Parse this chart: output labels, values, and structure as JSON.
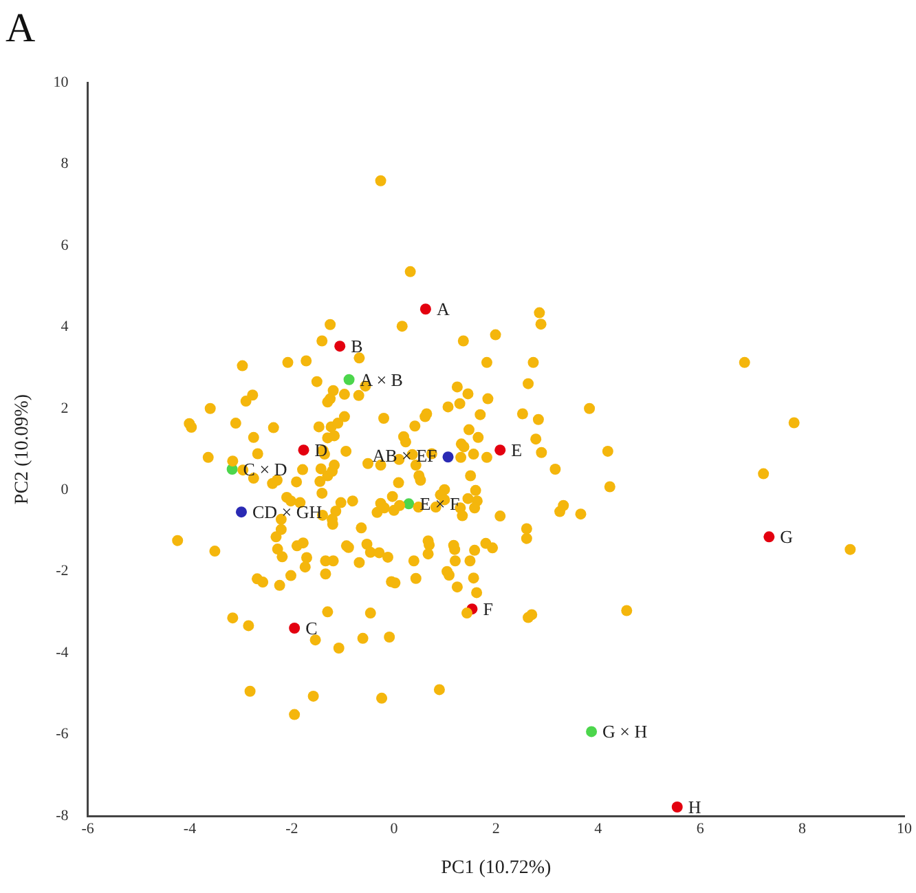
{
  "chart_data": {
    "type": "scatter",
    "title": "A",
    "xlabel": "PC1 (10.72%)",
    "ylabel": "PC2 (10.09%)",
    "xlim": [
      -6,
      10
    ],
    "ylim": [
      -8,
      10
    ],
    "xticks": [
      -6,
      -4,
      -2,
      0,
      2,
      4,
      6,
      8,
      10
    ],
    "yticks": [
      -8,
      -6,
      -4,
      -2,
      0,
      2,
      4,
      6,
      8,
      10
    ],
    "grid": false,
    "legend": false,
    "marker": "circle",
    "series": [
      {
        "color": "#f4b60c",
        "x": [
          -0.26,
          0.32,
          0.16,
          -1.25,
          -1.41,
          -0.68,
          -2.97,
          -2.08,
          -1.72,
          -1.51,
          -0.56,
          -1.19,
          -0.97,
          -0.69,
          -1.25,
          -1.3,
          -2.77,
          -2.9,
          -3.6,
          -4.01,
          -3.97,
          -3.1,
          -2.36,
          -2.75,
          -1.47,
          -1.23,
          -1.1,
          -0.97,
          -0.2,
          -1.3,
          -1.17,
          0.41,
          0.64,
          0.61,
          0.19,
          0.23,
          -2.67,
          -3.64,
          -3.16,
          -1.39,
          -1.36,
          -0.94,
          -0.51,
          -0.26,
          0.1,
          0.36,
          0.74,
          -2.96,
          -2.75,
          -1.79,
          -1.43,
          -1.3,
          -1.21,
          -1.17,
          -1.45,
          -1.91,
          -2.38,
          -2.29,
          0.49,
          0.52,
          -2.1,
          -2.02,
          -1.84,
          -1.41,
          -1.04,
          -0.81,
          -1.14,
          -1.4,
          -1.21,
          -1.2,
          -2.21,
          -2.21,
          -2.31,
          -2.28,
          -2.19,
          -1.9,
          -1.78,
          -1.71,
          -1.74,
          -2.02,
          -2.68,
          -2.57,
          -2.24,
          -1.34,
          -1.19,
          -1.34,
          -0.93,
          -0.89,
          -0.64,
          -0.53,
          -0.46,
          -0.29,
          -0.12,
          -0.68,
          -0.05,
          0.02,
          0.43,
          0.39,
          0.67,
          0.69,
          0.67,
          -0.33,
          -0.26,
          -0.19,
          0.0,
          0.11,
          0.48,
          0.82,
          -4.24,
          -3.51,
          -3.16,
          -2.85,
          -1.3,
          -0.46,
          -1.54,
          -1.08,
          -0.61,
          -0.09,
          -2.82,
          -1.58,
          -0.24,
          -1.95,
          0.89,
          2.85,
          2.88,
          1.36,
          1.99,
          1.82,
          2.73,
          2.63,
          1.24,
          1.45,
          1.29,
          1.06,
          1.84,
          3.83,
          1.69,
          2.52,
          2.83,
          1.47,
          1.65,
          2.78,
          4.19,
          1.32,
          1.37,
          1.56,
          1.82,
          2.89,
          3.16,
          1.31,
          1.5,
          4.23,
          0.43,
          0.99,
          0.91,
          0.99,
          1.45,
          1.63,
          1.6,
          -0.03,
          0.09,
          1.3,
          1.34,
          1.58,
          2.08,
          3.25,
          3.32,
          3.66,
          2.6,
          2.6,
          1.17,
          1.19,
          1.58,
          1.8,
          1.93,
          1.2,
          1.49,
          1.04,
          1.08,
          1.56,
          1.24,
          1.62,
          1.43,
          2.63,
          2.7,
          4.56,
          6.87,
          7.84,
          7.24,
          8.94
        ],
        "values": [
          7.59,
          5.36,
          4.02,
          4.06,
          3.66,
          3.24,
          3.05,
          3.13,
          3.17,
          2.66,
          2.55,
          2.44,
          2.35,
          2.32,
          2.24,
          2.16,
          2.33,
          2.18,
          2.0,
          1.63,
          1.54,
          1.64,
          1.53,
          1.29,
          1.55,
          1.55,
          1.64,
          1.8,
          1.76,
          1.28,
          1.33,
          1.57,
          1.87,
          1.8,
          1.31,
          1.18,
          0.89,
          0.8,
          0.71,
          0.97,
          0.88,
          0.95,
          0.65,
          0.61,
          0.75,
          0.87,
          0.89,
          0.49,
          0.29,
          0.5,
          0.52,
          0.35,
          0.46,
          0.61,
          0.21,
          0.2,
          0.16,
          0.24,
          0.35,
          0.24,
          -0.18,
          -0.27,
          -0.31,
          -0.08,
          -0.31,
          -0.27,
          -0.52,
          -0.62,
          -0.72,
          -0.84,
          -0.72,
          -0.97,
          -1.15,
          -1.45,
          -1.64,
          -1.37,
          -1.3,
          -1.66,
          -1.89,
          -2.1,
          -2.18,
          -2.26,
          -2.34,
          -1.74,
          -1.74,
          -2.06,
          -1.37,
          -1.41,
          -0.93,
          -1.33,
          -1.53,
          -1.54,
          -1.65,
          -1.78,
          -2.25,
          -2.28,
          -2.17,
          -1.74,
          -1.25,
          -1.35,
          -1.57,
          -0.55,
          -0.33,
          -0.44,
          -0.5,
          -0.38,
          -0.42,
          -0.42,
          -1.24,
          -1.5,
          -3.14,
          -3.33,
          -2.99,
          -3.02,
          -3.68,
          -3.88,
          -3.64,
          -3.61,
          -4.94,
          -5.06,
          -5.11,
          -5.51,
          -4.9,
          4.35,
          4.07,
          3.66,
          3.81,
          3.13,
          3.13,
          2.61,
          2.53,
          2.36,
          2.12,
          2.04,
          2.24,
          2.0,
          1.85,
          1.87,
          1.73,
          1.48,
          1.29,
          1.25,
          0.95,
          1.13,
          1.06,
          0.88,
          0.8,
          0.92,
          0.51,
          0.8,
          0.35,
          0.08,
          0.61,
          0.01,
          -0.12,
          -0.24,
          -0.21,
          -0.27,
          -0.01,
          -0.16,
          0.18,
          -0.44,
          -0.63,
          -0.44,
          -0.64,
          -0.53,
          -0.38,
          -0.59,
          -0.95,
          -1.19,
          -1.36,
          -1.46,
          -1.48,
          -1.31,
          -1.42,
          -1.74,
          -1.74,
          -2.0,
          -2.09,
          -2.16,
          -2.38,
          -2.52,
          -3.02,
          -3.13,
          -3.06,
          -2.96,
          3.13,
          1.65,
          0.4,
          -1.46
        ]
      },
      {
        "color": "#e3000f",
        "x": [
          0.62,
          -1.06,
          -1.77,
          2.08,
          1.53,
          -1.95,
          7.35,
          5.55
        ],
        "values": [
          4.44,
          3.53,
          0.98,
          0.98,
          -2.92,
          -3.39,
          -1.15,
          -7.78
        ]
      },
      {
        "color": "#4cd64c",
        "x": [
          -0.88,
          -3.17,
          0.29,
          3.87
        ],
        "values": [
          2.71,
          0.51,
          -0.34,
          -5.93
        ]
      },
      {
        "color": "#2a2ab4",
        "x": [
          1.06,
          -2.99
        ],
        "values": [
          0.81,
          -0.54
        ]
      }
    ],
    "annotations": [
      {
        "text": "A",
        "x": 0.62,
        "y": 4.44
      },
      {
        "text": "B",
        "x": -1.06,
        "y": 3.53
      },
      {
        "text": "A × B",
        "x": -0.88,
        "y": 2.71
      },
      {
        "text": "D",
        "x": -1.77,
        "y": 0.98
      },
      {
        "text": "C × D",
        "x": -3.17,
        "y": 0.51
      },
      {
        "text": "CD × GH",
        "x": -2.99,
        "y": -0.54
      },
      {
        "text": "E",
        "x": 2.08,
        "y": 0.98
      },
      {
        "text": "AB × EF",
        "x": 1.06,
        "y": 0.81
      },
      {
        "text": "E × F",
        "x": 0.29,
        "y": -0.34
      },
      {
        "text": "F",
        "x": 1.53,
        "y": -2.92
      },
      {
        "text": "C",
        "x": -1.95,
        "y": -3.39
      },
      {
        "text": "G × H",
        "x": 3.87,
        "y": -5.93
      },
      {
        "text": "G",
        "x": 7.35,
        "y": -1.15
      },
      {
        "text": "H",
        "x": 5.55,
        "y": -7.78
      }
    ]
  }
}
